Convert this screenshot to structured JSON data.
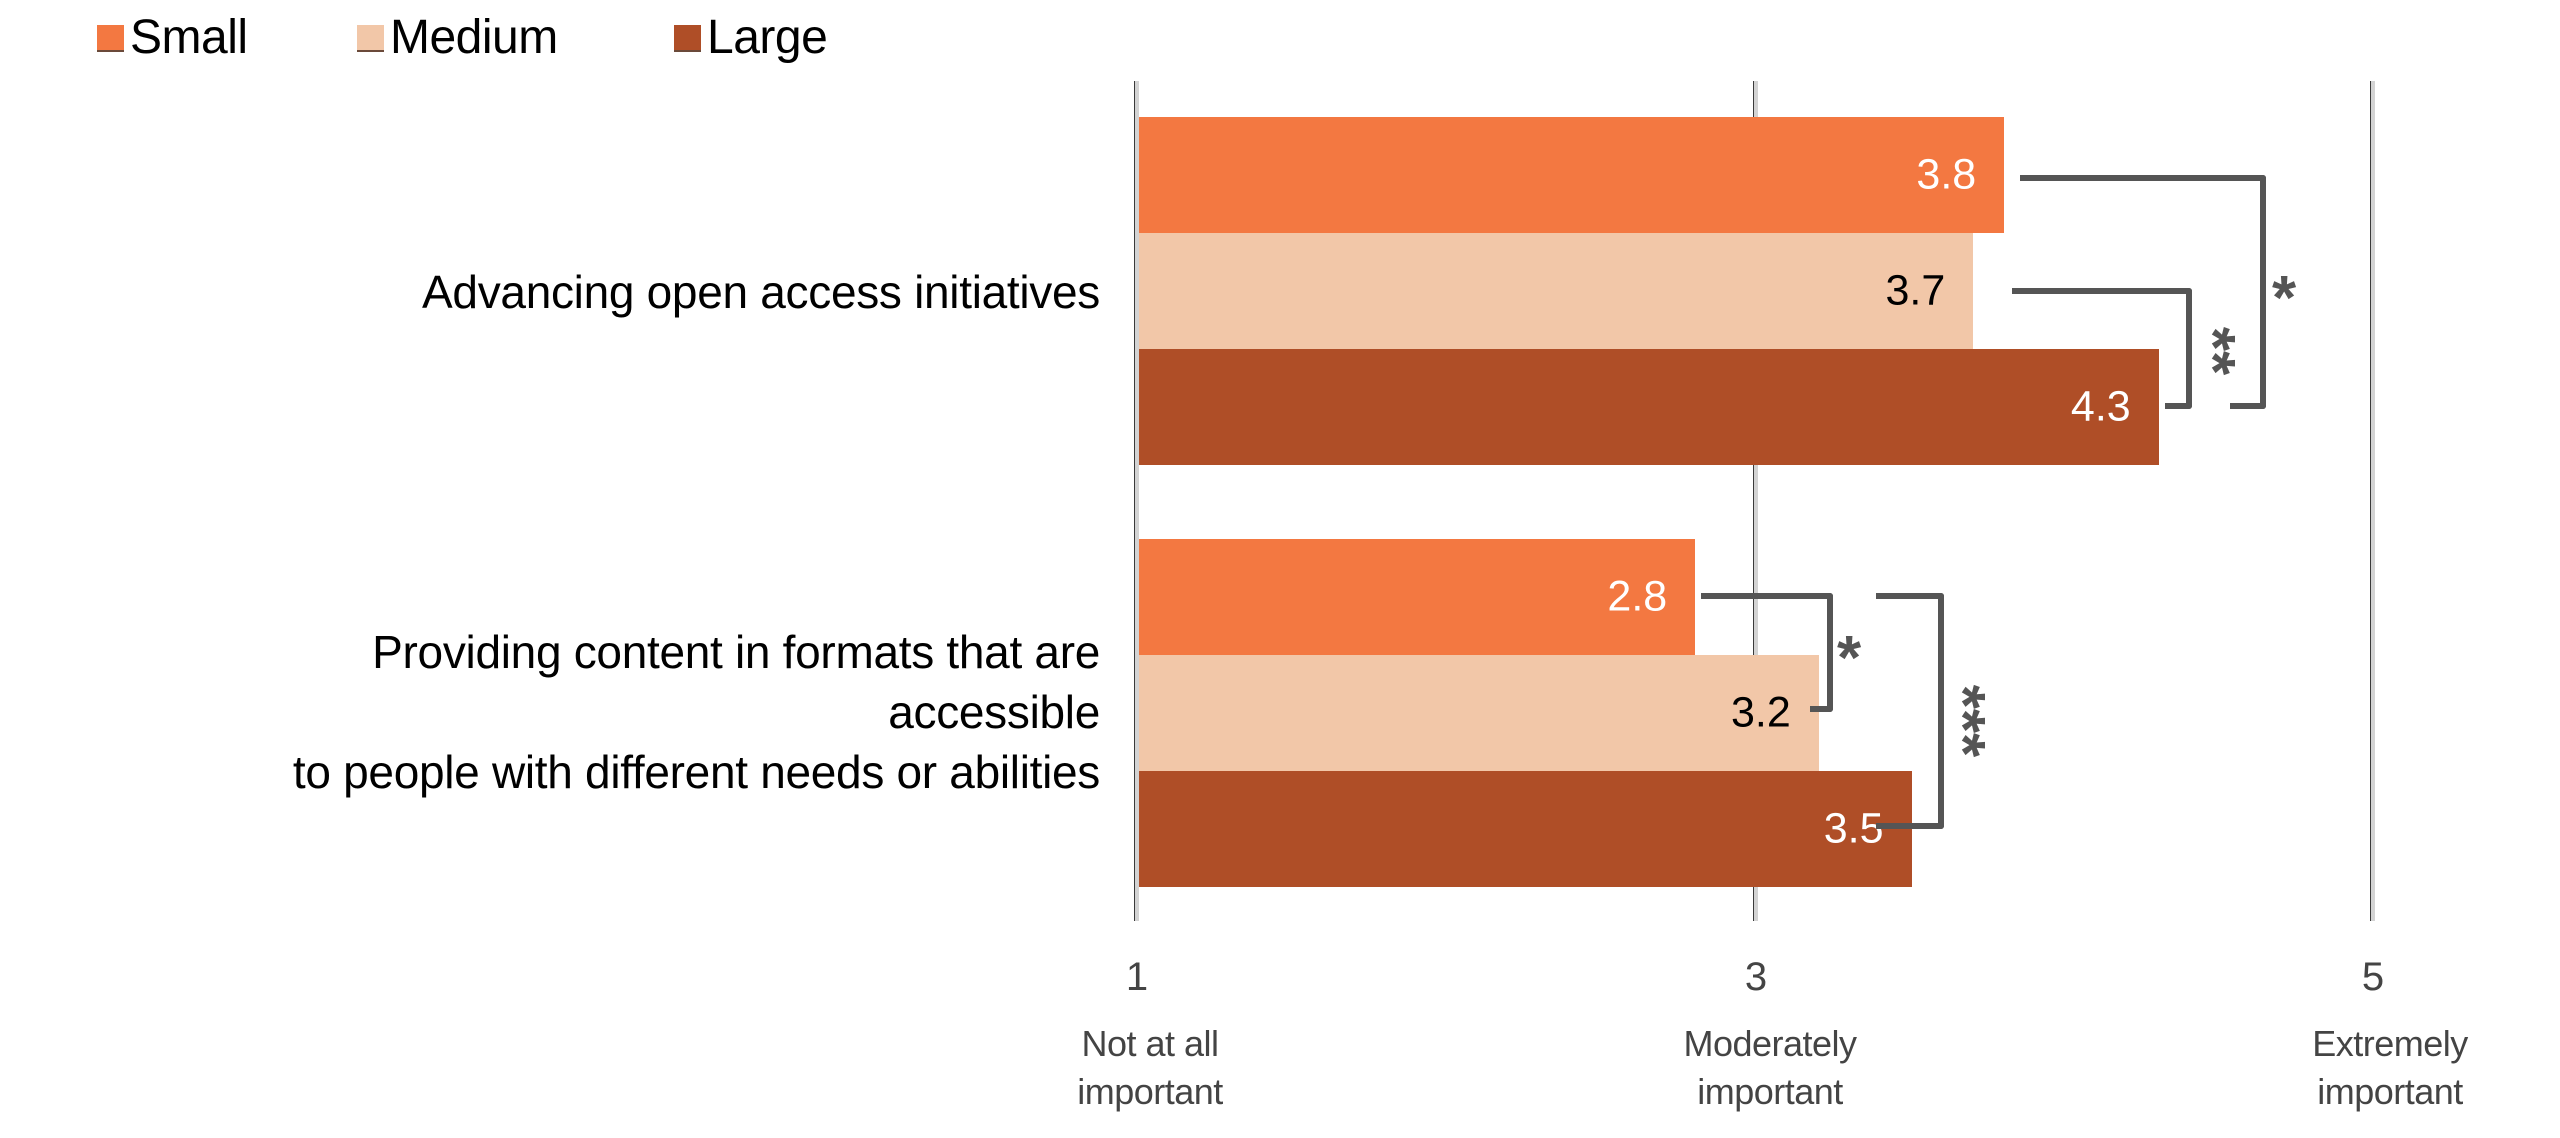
{
  "legend": {
    "items": [
      {
        "label": "Small",
        "color": "#F37841"
      },
      {
        "label": "Medium",
        "color": "#F2C7A8"
      },
      {
        "label": "Large",
        "color": "#AF4E27"
      }
    ]
  },
  "axis": {
    "ticks": [
      {
        "value": "1",
        "label_line1": "Not at all",
        "label_line2": "important"
      },
      {
        "value": "3",
        "label_line1": "Moderately",
        "label_line2": "important"
      },
      {
        "value": "5",
        "label_line1": "Extremely",
        "label_line2": "important"
      }
    ]
  },
  "categories": [
    {
      "label_lines": [
        "Advancing open access initiatives"
      ]
    },
    {
      "label_lines": [
        "Providing content in formats that are",
        "accessible",
        "to people with different needs or abilities"
      ]
    }
  ],
  "significance": [
    {
      "category": 0,
      "pair": [
        "Small",
        "Large"
      ],
      "marker": "*"
    },
    {
      "category": 0,
      "pair": [
        "Medium",
        "Large"
      ],
      "marker": "**"
    },
    {
      "category": 1,
      "pair": [
        "Small",
        "Medium"
      ],
      "marker": "*"
    },
    {
      "category": 1,
      "pair": [
        "Small",
        "Large"
      ],
      "marker": "***"
    }
  ],
  "chart_data": {
    "type": "bar",
    "orientation": "horizontal",
    "title": "",
    "xlabel": "",
    "ylabel": "",
    "categories": [
      "Advancing open access initiatives",
      "Providing content in formats that are accessible to people with different needs or abilities"
    ],
    "series": [
      {
        "name": "Small",
        "color": "#F37841",
        "values": [
          3.8,
          2.8
        ],
        "label_color": "#FFFFFF"
      },
      {
        "name": "Medium",
        "color": "#F2C7A8",
        "values": [
          3.7,
          3.2
        ],
        "label_color": "#000000"
      },
      {
        "name": "Large",
        "color": "#AF4E27",
        "values": [
          4.3,
          3.5
        ],
        "label_color": "#FFFFFF"
      }
    ],
    "xlim": [
      1,
      5
    ],
    "xticks": [
      1,
      3,
      5
    ],
    "xtick_labels": [
      "1\nNot at all important",
      "3\nModerately important",
      "5\nExtremely important"
    ],
    "grid": true,
    "legend_position": "top-left",
    "annotations": [
      {
        "category": "Advancing open access initiatives",
        "compare": "Small vs Large",
        "significance": "*"
      },
      {
        "category": "Advancing open access initiatives",
        "compare": "Medium vs Large",
        "significance": "**"
      },
      {
        "category": "Providing content in formats that are accessible to people with different needs or abilities",
        "compare": "Small vs Medium",
        "significance": "*"
      },
      {
        "category": "Providing content in formats that are accessible to people with different needs or abilities",
        "compare": "Small vs Large",
        "significance": "***"
      }
    ]
  }
}
